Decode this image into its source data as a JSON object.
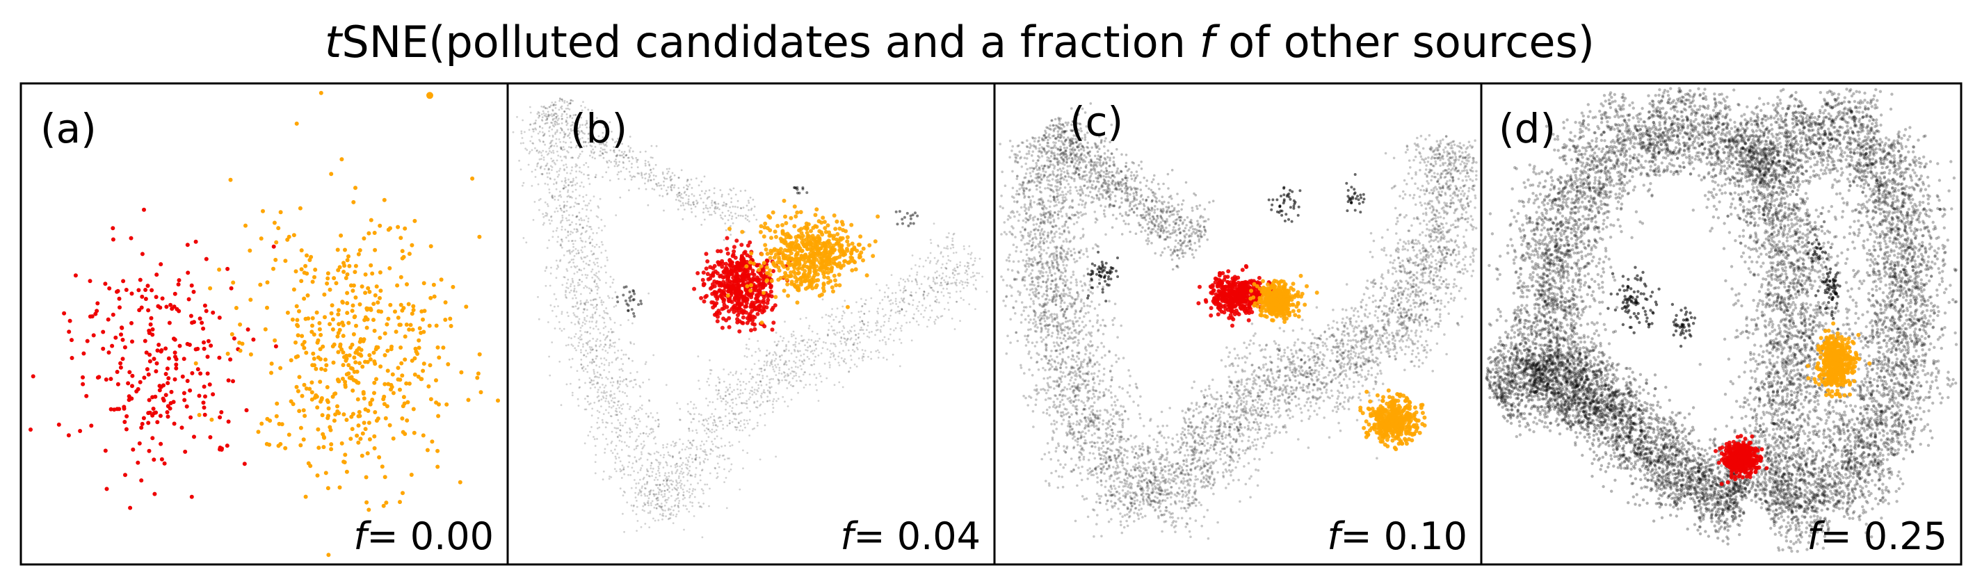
{
  "figure": {
    "title_italic": "t",
    "title_rest": "SNE(polluted candidates and a fraction ",
    "title_var": "f",
    "title_end": " of other sources)"
  },
  "colors": {
    "candidates_red": "#ee0000",
    "candidates_orange": "#ffa500",
    "other_sources": "#000000",
    "frame": "#000000"
  },
  "chart_data": [
    {
      "type": "scatter",
      "panel": "(a)",
      "f_symbol": "f",
      "f_text": "= 0.00",
      "f": 0.0,
      "series": [
        {
          "color": "#ee0000",
          "cluster": {
            "cx": 0.28,
            "cy": 0.58,
            "sx": 0.16,
            "sy": 0.22
          }
        },
        {
          "color": "#ffa500",
          "cluster": {
            "cx": 0.68,
            "cy": 0.55,
            "sx": 0.2,
            "sy": 0.25
          }
        }
      ]
    },
    {
      "type": "scatter",
      "panel": "(b)",
      "f_symbol": "f",
      "f_text": "= 0.04",
      "f": 0.04,
      "series": [
        {
          "color": "#000000",
          "shape": "v-band"
        },
        {
          "color": "#ee0000",
          "cluster": {
            "cx": 0.48,
            "cy": 0.42,
            "sx": 0.06,
            "sy": 0.07
          }
        },
        {
          "color": "#ffa500",
          "cluster": {
            "cx": 0.62,
            "cy": 0.36,
            "sx": 0.09,
            "sy": 0.07
          }
        }
      ]
    },
    {
      "type": "scatter",
      "panel": "(c)",
      "f_symbol": "f",
      "f_text": "= 0.10",
      "f": 0.1,
      "series": [
        {
          "color": "#000000",
          "shape": "v-band"
        },
        {
          "color": "#ee0000",
          "cluster": {
            "cx": 0.5,
            "cy": 0.44,
            "sx": 0.05,
            "sy": 0.035
          }
        },
        {
          "color": "#ffa500",
          "cluster": {
            "cx": 0.58,
            "cy": 0.45,
            "sx": 0.035,
            "sy": 0.03
          }
        },
        {
          "color": "#ffa500",
          "cluster": {
            "cx": 0.82,
            "cy": 0.7,
            "sx": 0.045,
            "sy": 0.04
          }
        }
      ]
    },
    {
      "type": "scatter",
      "panel": "(d)",
      "f_symbol": "f",
      "f_text": "= 0.25",
      "f": 0.25,
      "series": [
        {
          "color": "#000000",
          "shape": "spiral"
        },
        {
          "color": "#ffa500",
          "cluster": {
            "cx": 0.74,
            "cy": 0.58,
            "sx": 0.035,
            "sy": 0.05
          }
        },
        {
          "color": "#ee0000",
          "cluster": {
            "cx": 0.54,
            "cy": 0.78,
            "sx": 0.03,
            "sy": 0.03
          }
        }
      ]
    }
  ]
}
